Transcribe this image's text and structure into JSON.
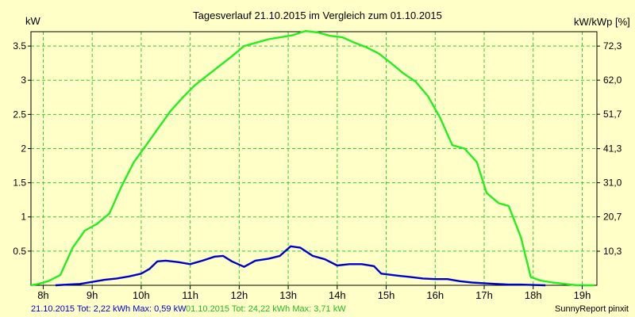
{
  "chart_data": {
    "type": "line",
    "title": "Tagesverlauf 21.10.2015 im Vergleich zum 01.10.2015",
    "ylabel": "kW",
    "y2label": "kW/kWp [%]",
    "xlim": [
      7.75,
      19.3
    ],
    "ylim": [
      0,
      3.71
    ],
    "y2lim": [
      0,
      76.65
    ],
    "grid": true,
    "x_tick_values": [
      8,
      9,
      10,
      11,
      12,
      13,
      14,
      15,
      16,
      17,
      18,
      19
    ],
    "x_tick_labels": [
      "8h",
      "9h",
      "10h",
      "11h",
      "12h",
      "13h",
      "14h",
      "15h",
      "16h",
      "17h",
      "18h",
      "19h"
    ],
    "y_tick_values": [
      0.5,
      1,
      1.5,
      2,
      2.5,
      3,
      3.5
    ],
    "y_tick_labels": [
      "0.5",
      "1",
      "1.5",
      "2",
      "2.5",
      "3",
      "3.5"
    ],
    "y2_tick_values": [
      10.3,
      20.7,
      31.0,
      41.3,
      51.7,
      62.0,
      72.3
    ],
    "y2_tick_labels": [
      "10,3",
      "20,7",
      "31,0",
      "41,3",
      "51,7",
      "62,0",
      "72,3"
    ],
    "series": [
      {
        "name": "21.10.2015",
        "color": "#0000cc",
        "points": [
          [
            8.25,
            0
          ],
          [
            8.5,
            0.01
          ],
          [
            8.75,
            0.02
          ],
          [
            9.0,
            0.05
          ],
          [
            9.25,
            0.08
          ],
          [
            9.5,
            0.1
          ],
          [
            9.75,
            0.13
          ],
          [
            10.0,
            0.17
          ],
          [
            10.17,
            0.24
          ],
          [
            10.33,
            0.35
          ],
          [
            10.5,
            0.36
          ],
          [
            10.75,
            0.34
          ],
          [
            11.0,
            0.31
          ],
          [
            11.25,
            0.36
          ],
          [
            11.5,
            0.42
          ],
          [
            11.67,
            0.43
          ],
          [
            11.85,
            0.35
          ],
          [
            12.1,
            0.27
          ],
          [
            12.33,
            0.36
          ],
          [
            12.6,
            0.39
          ],
          [
            12.83,
            0.43
          ],
          [
            13.05,
            0.57
          ],
          [
            13.25,
            0.55
          ],
          [
            13.5,
            0.43
          ],
          [
            13.75,
            0.38
          ],
          [
            14.0,
            0.29
          ],
          [
            14.25,
            0.31
          ],
          [
            14.5,
            0.31
          ],
          [
            14.75,
            0.28
          ],
          [
            14.9,
            0.17
          ],
          [
            15.25,
            0.14
          ],
          [
            15.5,
            0.12
          ],
          [
            15.75,
            0.1
          ],
          [
            16.0,
            0.09
          ],
          [
            16.25,
            0.09
          ],
          [
            16.5,
            0.06
          ],
          [
            16.75,
            0.04
          ],
          [
            17.0,
            0.03
          ],
          [
            17.25,
            0.02
          ],
          [
            17.5,
            0.01
          ],
          [
            17.75,
            0.01
          ],
          [
            18.0,
            0.005
          ],
          [
            18.25,
            0
          ]
        ]
      },
      {
        "name": "01.10.2015",
        "color": "#22ee22",
        "points": [
          [
            7.75,
            0
          ],
          [
            7.9,
            0.02
          ],
          [
            8.1,
            0.06
          ],
          [
            8.35,
            0.15
          ],
          [
            8.6,
            0.55
          ],
          [
            8.85,
            0.8
          ],
          [
            9.1,
            0.9
          ],
          [
            9.35,
            1.05
          ],
          [
            9.6,
            1.45
          ],
          [
            9.85,
            1.8
          ],
          [
            10.1,
            2.05
          ],
          [
            10.35,
            2.3
          ],
          [
            10.6,
            2.55
          ],
          [
            10.85,
            2.75
          ],
          [
            11.1,
            2.93
          ],
          [
            11.35,
            3.07
          ],
          [
            11.6,
            3.21
          ],
          [
            11.85,
            3.35
          ],
          [
            12.1,
            3.5
          ],
          [
            12.35,
            3.55
          ],
          [
            12.6,
            3.6
          ],
          [
            12.85,
            3.63
          ],
          [
            13.1,
            3.66
          ],
          [
            13.35,
            3.72
          ],
          [
            13.6,
            3.7
          ],
          [
            13.85,
            3.65
          ],
          [
            14.1,
            3.63
          ],
          [
            14.35,
            3.55
          ],
          [
            14.6,
            3.48
          ],
          [
            14.85,
            3.39
          ],
          [
            15.1,
            3.25
          ],
          [
            15.35,
            3.1
          ],
          [
            15.6,
            2.98
          ],
          [
            15.85,
            2.77
          ],
          [
            16.1,
            2.45
          ],
          [
            16.35,
            2.05
          ],
          [
            16.6,
            2.0
          ],
          [
            16.85,
            1.8
          ],
          [
            17.05,
            1.35
          ],
          [
            17.3,
            1.2
          ],
          [
            17.5,
            1.16
          ],
          [
            17.75,
            0.7
          ],
          [
            17.95,
            0.12
          ],
          [
            18.15,
            0.07
          ],
          [
            18.4,
            0.04
          ],
          [
            18.65,
            0.02
          ],
          [
            18.9,
            0.0
          ],
          [
            19.25,
            0.0
          ]
        ]
      }
    ]
  },
  "footer": {
    "blue_info": "21.10.2015 Tot: 2,22 kWh Max: 0,59 kW",
    "green_info": "01.10.2015 Tot: 24,22 kWh Max: 3,71 kW",
    "credit": "SunnyReport pinxit"
  }
}
